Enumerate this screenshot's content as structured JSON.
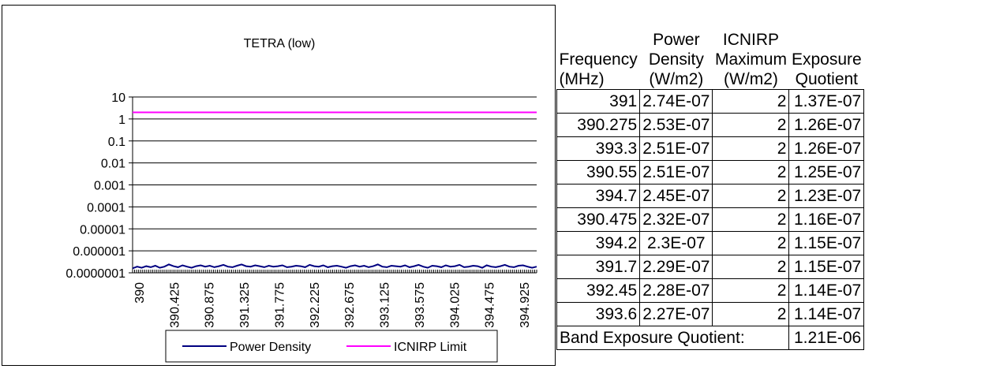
{
  "chart_data": {
    "type": "line",
    "title": "TETRA (low)",
    "xlabel": "",
    "ylabel": "",
    "y_scale": "log",
    "ylim": [
      1e-07,
      10
    ],
    "y_tick_labels": [
      "10",
      "1",
      "0.1",
      "0.01",
      "0.001",
      "0.0001",
      "0.00001",
      "0.000001",
      "0.0000001"
    ],
    "x_range": [
      390,
      395
    ],
    "x_tick_labels": [
      "390",
      "390.425",
      "390.875",
      "391.325",
      "391.775",
      "392.225",
      "392.675",
      "393.125",
      "393.575",
      "394.025",
      "394.475",
      "394.925"
    ],
    "grid": true,
    "legend_position": "bottom",
    "series": [
      {
        "name": "Power Density",
        "color": "#000080",
        "values": [
          1.6e-07,
          1.9e-07,
          1.7e-07,
          2e-07,
          1.8e-07,
          2.1e-07,
          1.7e-07,
          1.9e-07,
          2.4e-07,
          2e-07,
          1.8e-07,
          2.2e-07,
          1.9e-07,
          1.7e-07,
          2e-07,
          2.2e-07,
          1.9e-07,
          2.1e-07,
          1.8e-07,
          2e-07,
          2.3e-07,
          1.9e-07,
          1.8e-07,
          2.1e-07,
          2.4e-07,
          2e-07,
          1.9e-07,
          2.2e-07,
          2e-07,
          1.8e-07,
          2.1e-07,
          1.9e-07,
          2e-07,
          2.2e-07,
          1.8e-07,
          1.9e-07,
          2.1e-07,
          2e-07,
          1.8e-07,
          2.3e-07,
          2e-07,
          1.9e-07,
          2.2e-07,
          1.8e-07,
          2e-07,
          2.1e-07,
          1.9e-07,
          1.7e-07,
          2e-07,
          2.2e-07,
          1.9e-07,
          2.1e-07,
          1.8e-07,
          2e-07,
          2.4e-07,
          1.9e-07,
          1.8e-07,
          2.1e-07,
          2e-07,
          1.9e-07,
          2.2e-07,
          1.8e-07,
          2e-07,
          2.3e-07,
          1.9e-07,
          1.7e-07,
          2.1e-07,
          2e-07,
          1.8e-07,
          2.2e-07,
          1.9e-07,
          2e-07,
          2.3e-07,
          1.8e-07,
          1.9e-07,
          2.1e-07,
          2e-07,
          1.7e-07,
          2.2e-07,
          1.9e-07,
          1.8e-07,
          2e-07,
          2.3e-07,
          1.9e-07,
          1.8e-07,
          2.1e-07,
          2.2e-07,
          1.9e-07,
          1.7e-07,
          1.9e-07
        ]
      },
      {
        "name": "ICNIRP Limit",
        "color": "#FF00FF",
        "values": [
          2,
          2
        ]
      }
    ]
  },
  "table": {
    "headers": [
      [
        "Frequency",
        "(MHz)"
      ],
      [
        "Power",
        "Density",
        "(W/m2)"
      ],
      [
        "ICNIRP",
        "Maximum",
        "(W/m2)"
      ],
      [
        "Exposure",
        "Quotient"
      ]
    ],
    "rows": [
      [
        "391",
        "2.74E-07",
        "2",
        "1.37E-07"
      ],
      [
        "390.275",
        "2.53E-07",
        "2",
        "1.26E-07"
      ],
      [
        "393.3",
        "2.51E-07",
        "2",
        "1.26E-07"
      ],
      [
        "390.55",
        "2.51E-07",
        "2",
        "1.25E-07"
      ],
      [
        "394.7",
        "2.45E-07",
        "2",
        "1.23E-07"
      ],
      [
        "390.475",
        "2.32E-07",
        "2",
        "1.16E-07"
      ],
      [
        "394.2",
        "2.3E-07",
        "2",
        "1.15E-07"
      ],
      [
        "391.7",
        "2.29E-07",
        "2",
        "1.15E-07"
      ],
      [
        "392.45",
        "2.28E-07",
        "2",
        "1.14E-07"
      ],
      [
        "393.6",
        "2.27E-07",
        "2",
        "1.14E-07"
      ]
    ],
    "band_label": "Band Exposure Quotient:",
    "band_value": "1.21E-06"
  }
}
